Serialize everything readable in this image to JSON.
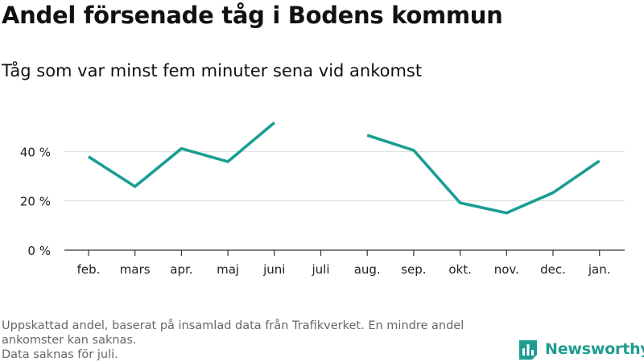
{
  "header": {
    "title": "Andel försenade tåg i Bodens kommun",
    "subtitle": "Tåg som var minst fem minuter sena vid ankomst"
  },
  "chart_data": {
    "type": "line",
    "categories": [
      "feb.",
      "mars",
      "apr.",
      "maj",
      "juni",
      "juli",
      "aug.",
      "sep.",
      "okt.",
      "nov.",
      "dec.",
      "jan."
    ],
    "series": [
      {
        "values": [
          37.9,
          25.8,
          41.2,
          35.9,
          51.7,
          null,
          46.6,
          40.5,
          19.2,
          15.1,
          23.3,
          36.2
        ]
      }
    ],
    "y_ticks": [
      0,
      20,
      40
    ],
    "y_tick_labels": [
      "0 %",
      "20 %",
      "40 %"
    ],
    "ylim": [
      0,
      53
    ],
    "grid": true,
    "line_color": "#1a9e93"
  },
  "footnote": {
    "lines": [
      "Uppskattad andel, baserat på insamlad data från Trafikverket. En mindre andel",
      "ankomster kan saknas.",
      "Data saknas för juli."
    ]
  },
  "logo": {
    "text": "Newsworthy",
    "icon": "newsworthy-bar-chart-icon",
    "color": "#1f9c8f"
  }
}
